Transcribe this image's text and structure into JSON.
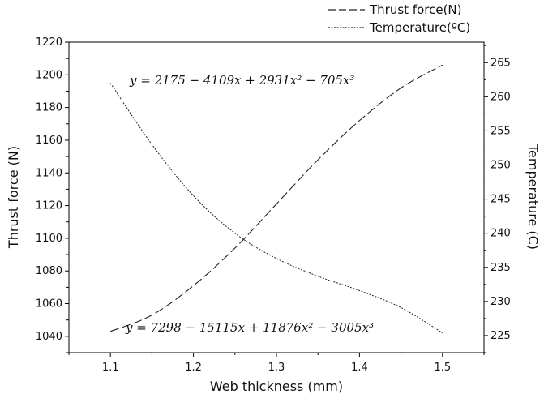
{
  "chart_data": {
    "type": "line",
    "xlabel": "Web thickness (mm)",
    "ylabel_left": "Thrust force (N)",
    "ylabel_right": "Temperature (C)",
    "xlim": [
      1.05,
      1.55
    ],
    "ylim_left": [
      1030,
      1220
    ],
    "ylim_right": [
      222.5,
      268
    ],
    "x_ticks": [
      1.1,
      1.2,
      1.3,
      1.4,
      1.5
    ],
    "x_tick_labels": [
      "1.1",
      "1.2",
      "1.3",
      "1.4",
      "1.5"
    ],
    "left_ticks": [
      1040,
      1060,
      1080,
      1100,
      1120,
      1140,
      1160,
      1180,
      1200,
      1220
    ],
    "left_tick_labels": [
      "1040",
      "1060",
      "1080",
      "1100",
      "1120",
      "1140",
      "1160",
      "1180",
      "1200",
      "1220"
    ],
    "right_ticks": [
      225,
      230,
      235,
      240,
      245,
      250,
      255,
      260,
      265
    ],
    "right_tick_labels": [
      "225",
      "230",
      "235",
      "240",
      "245",
      "250",
      "255",
      "260",
      "265"
    ],
    "legend": [
      {
        "name": "Thrust force(N)",
        "style": "dashed"
      },
      {
        "name": "Temperature(ºC)",
        "style": "dotted"
      }
    ],
    "series": [
      {
        "name": "Thrust force(N)",
        "axis": "left",
        "style": "dashed",
        "x": [
          1.1,
          1.15,
          1.2,
          1.25,
          1.3,
          1.35,
          1.4,
          1.45,
          1.5
        ],
        "values": [
          1043,
          1053,
          1071,
          1094,
          1121,
          1148,
          1172,
          1192,
          1206
        ]
      },
      {
        "name": "Temperature(ºC)",
        "axis": "right",
        "style": "dotted",
        "x": [
          1.1,
          1.15,
          1.2,
          1.25,
          1.3,
          1.35,
          1.4,
          1.45,
          1.5
        ],
        "values": [
          262.0,
          253.0,
          245.5,
          240.0,
          236.3,
          233.7,
          231.6,
          229.1,
          225.4
        ]
      }
    ],
    "annotations": [
      {
        "text": "y = 2175 − 4109x + 2931x² − 705x³",
        "near": "top-left"
      },
      {
        "text": "y = 7298 − 15115x + 11876x² − 3005x³",
        "near": "bottom"
      }
    ],
    "colors": {
      "line": "#222222",
      "axis": "#000000"
    }
  }
}
